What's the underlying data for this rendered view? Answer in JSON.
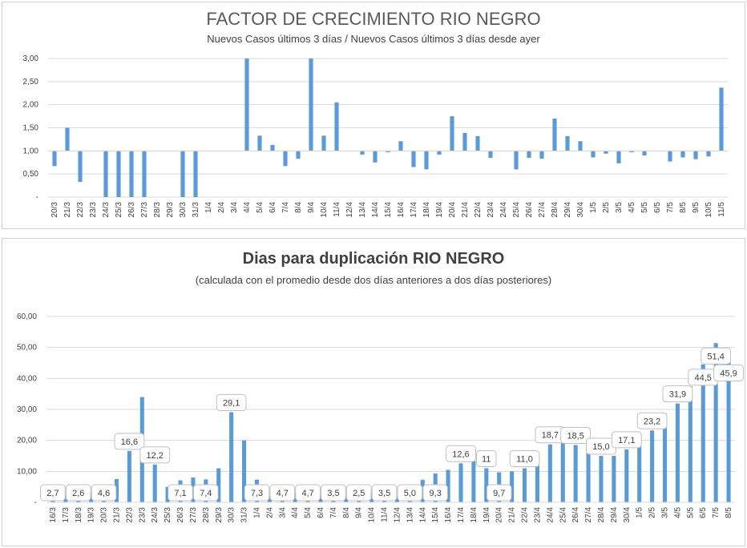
{
  "chart_data": [
    {
      "type": "bar",
      "title": "FACTOR DE CRECIMIENTO RIO NEGRO",
      "subtitle": "Nuevos Casos últimos 3 días / Nuevos Casos últimos 3 días desde ayer",
      "color": "#5b9bd5",
      "baseline": 1.0,
      "ylim": [
        0,
        3
      ],
      "yticks": [
        "-",
        "0,50",
        "1,00",
        "1,50",
        "2,00",
        "2,50",
        "3,00"
      ],
      "grid": true,
      "categories": [
        "20/3",
        "21/3",
        "22/3",
        "23/3",
        "24/3",
        "25/3",
        "26/3",
        "27/3",
        "28/3",
        "29/3",
        "30/3",
        "31/3",
        "1/4",
        "2/4",
        "3/4",
        "4/4",
        "5/4",
        "6/4",
        "7/4",
        "8/4",
        "9/4",
        "10/4",
        "11/4",
        "12/4",
        "13/4",
        "14/4",
        "15/4",
        "16/4",
        "17/4",
        "18/4",
        "19/4",
        "20/4",
        "21/4",
        "22/4",
        "23/4",
        "24/4",
        "25/4",
        "26/4",
        "27/4",
        "28/4",
        "29/4",
        "30/4",
        "1/5",
        "2/5",
        "3/5",
        "4/5",
        "5/5",
        "6/5",
        "7/5",
        "8/5",
        "9/5",
        "10/5",
        "11/5"
      ],
      "x_labels": [
        "20/3",
        "21/3",
        "22/3",
        "23/3",
        "24/3",
        "25/3",
        "26/3",
        "27/3",
        "28/3",
        "29/3",
        "30/3",
        "31/3",
        "1/4",
        "2/4",
        "3/4",
        "4/4",
        "5/4",
        "6/4",
        "7/4",
        "8/4",
        "9/4",
        "10/4",
        "11/4",
        "12/4",
        "13/4",
        "14/4",
        "15/4",
        "16/4",
        "17/4",
        "18/4",
        "19/4",
        "20/4",
        "21/4",
        "22/4",
        "23/4",
        "24/4",
        "25/4",
        "26/4",
        "27/4",
        "28/4",
        "29/4",
        "30/4",
        "1/5",
        "2/5",
        "3/5",
        "4/5",
        "5/5",
        "6/5",
        "7/5",
        "8/5",
        "9/5",
        "10/5",
        "11/5"
      ],
      "values": [
        0.67,
        1.5,
        0.33,
        1.0,
        0.0,
        0.0,
        0.0,
        0.0,
        1.0,
        1.0,
        0.0,
        0.0,
        1.0,
        1.0,
        1.0,
        3.0,
        1.33,
        1.13,
        0.67,
        0.83,
        3.0,
        1.33,
        2.05,
        1.0,
        0.92,
        0.75,
        0.97,
        1.21,
        0.65,
        0.6,
        0.92,
        1.75,
        1.39,
        1.32,
        0.85,
        1.0,
        0.6,
        0.85,
        0.83,
        1.7,
        1.32,
        1.21,
        0.86,
        0.94,
        0.73,
        0.97,
        0.9,
        1.0,
        0.77,
        0.86,
        0.82,
        0.88,
        2.37
      ]
    },
    {
      "type": "bar",
      "title": "Dias para duplicación RIO NEGRO",
      "subtitle": "(calculada con el promedio  desde dos días anteriores a dos días posteriores)",
      "color": "#5b9bd5",
      "ylim": [
        0,
        60
      ],
      "yticks": [
        "-",
        "10,00",
        "20,00",
        "30,00",
        "40,00",
        "50,00",
        "60,00"
      ],
      "grid": true,
      "categories": [
        "16/3",
        "17/3",
        "18/3",
        "19/3",
        "20/3",
        "21/3",
        "22/3",
        "23/3",
        "24/3",
        "25/3",
        "26/3",
        "27/3",
        "28/3",
        "29/3",
        "30/3",
        "31/3",
        "1/4",
        "2/4",
        "3/4",
        "4/4",
        "5/4",
        "6/4",
        "7/4",
        "8/4",
        "9/4",
        "10/4",
        "11/4",
        "12/4",
        "13/4",
        "14/4",
        "15/4",
        "16/4",
        "17/4",
        "18/4",
        "19/4",
        "20/4",
        "21/4",
        "22/4",
        "23/4",
        "24/4",
        "25/4",
        "26/4",
        "27/4",
        "28/4",
        "29/4",
        "30/4",
        "1/5",
        "2/5",
        "3/5",
        "4/5",
        "5/5",
        "6/5",
        "7/5",
        "8/5"
      ],
      "x_labels": [
        "16/3",
        "17/3",
        "18/3",
        "19/3",
        "20/3",
        "21/3",
        "22/3",
        "23/3",
        "24/3",
        "25/3",
        "26/3",
        "27/3",
        "28/3",
        "29/3",
        "30/3",
        "31/3",
        "1/4",
        "2/4",
        "3/4",
        "4/4",
        "5/4",
        "6/4",
        "7/4",
        "8/4",
        "9/4",
        "10/4",
        "11/4",
        "12/4",
        "13/4",
        "14/4",
        "15/4",
        "16/4",
        "17/4",
        "18/4",
        "19/4",
        "20/4",
        "21/4",
        "22/4",
        "23/4",
        "24/4",
        "25/4",
        "26/4",
        "27/4",
        "28/4",
        "29/4",
        "30/4",
        "1/5",
        "2/5",
        "3/5",
        "4/5",
        "5/5",
        "6/5",
        "7/5",
        "8/5"
      ],
      "values": [
        2.7,
        2.5,
        2.6,
        3.0,
        4.6,
        7.5,
        16.6,
        34.0,
        12.2,
        5.0,
        7.1,
        8.0,
        7.4,
        11.0,
        29.1,
        20.0,
        7.3,
        2.0,
        4.7,
        3.0,
        4.7,
        2.0,
        3.5,
        2.0,
        2.5,
        3.0,
        3.5,
        2.0,
        5.0,
        7.3,
        9.3,
        10.5,
        12.6,
        13.3,
        11.0,
        9.7,
        10.0,
        11.0,
        13.8,
        18.7,
        19.5,
        18.5,
        17.5,
        15.0,
        15.0,
        17.1,
        19.5,
        23.2,
        28.7,
        31.9,
        37.5,
        44.5,
        51.4,
        45.9
      ],
      "data_labels": [
        {
          "index": 0,
          "text": "2,7"
        },
        {
          "index": 2,
          "text": "2,6"
        },
        {
          "index": 4,
          "text": "4,6"
        },
        {
          "index": 6,
          "text": "16,6"
        },
        {
          "index": 8,
          "text": "12,2"
        },
        {
          "index": 10,
          "text": "7,1"
        },
        {
          "index": 12,
          "text": "7,4"
        },
        {
          "index": 14,
          "text": "29,1"
        },
        {
          "index": 16,
          "text": "7,3"
        },
        {
          "index": 18,
          "text": "4,7"
        },
        {
          "index": 20,
          "text": "4,7"
        },
        {
          "index": 22,
          "text": "3,5"
        },
        {
          "index": 24,
          "text": "2,5"
        },
        {
          "index": 26,
          "text": "3,5"
        },
        {
          "index": 28,
          "text": "5,0"
        },
        {
          "index": 30,
          "text": "9,3"
        },
        {
          "index": 32,
          "text": "12,6"
        },
        {
          "index": 34,
          "text": "11"
        },
        {
          "index": 35,
          "text": "9,7"
        },
        {
          "index": 37,
          "text": "11,0"
        },
        {
          "index": 39,
          "text": "18,7"
        },
        {
          "index": 41,
          "text": "18,5"
        },
        {
          "index": 43,
          "text": "15,0"
        },
        {
          "index": 45,
          "text": "17,1"
        },
        {
          "index": 47,
          "text": "23,2"
        },
        {
          "index": 49,
          "text": "31,9"
        },
        {
          "index": 51,
          "text": "44,5"
        },
        {
          "index": 52,
          "text": "51,4"
        },
        {
          "index": 53,
          "text": "45,9"
        }
      ]
    }
  ]
}
